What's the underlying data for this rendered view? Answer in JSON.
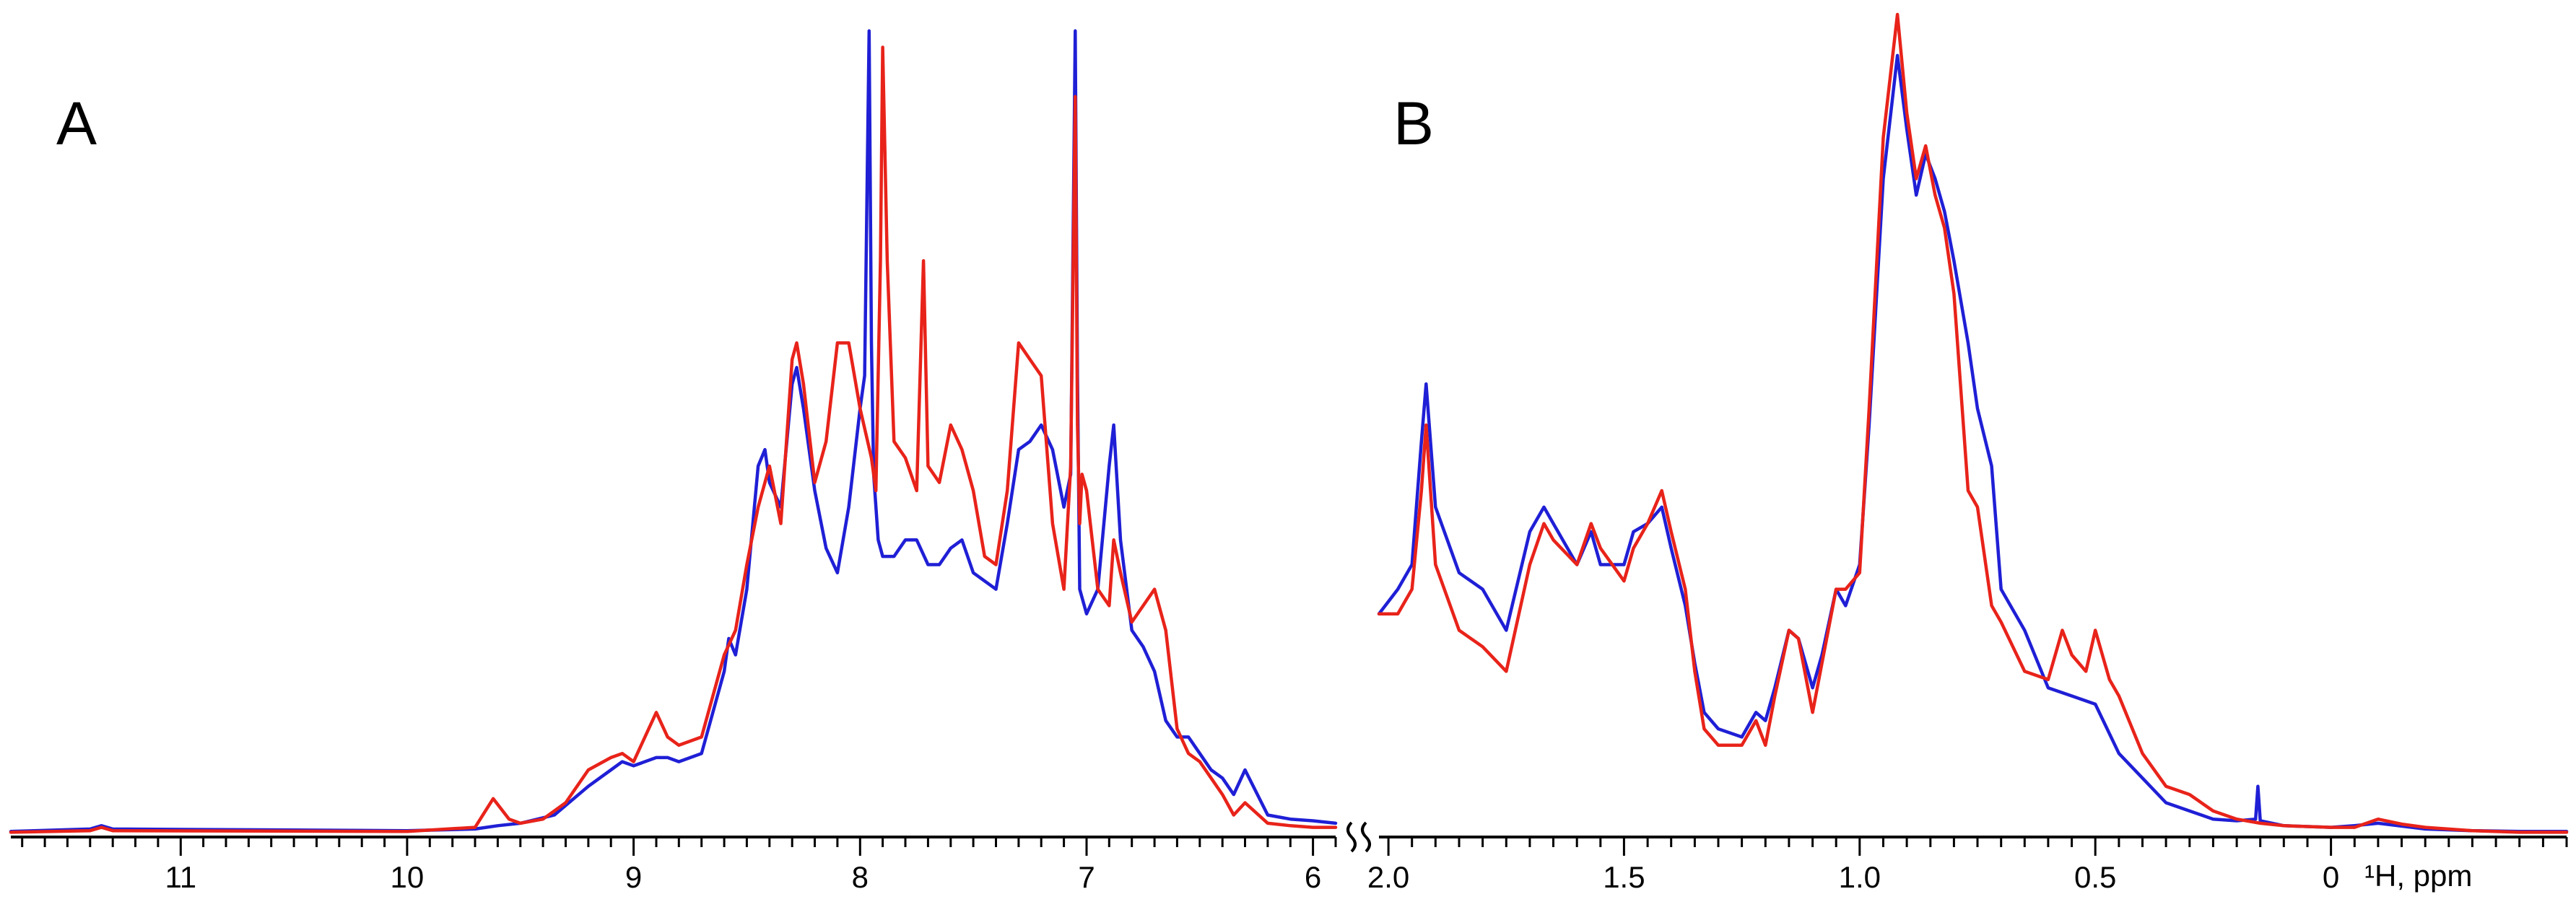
{
  "chart_data": [
    {
      "type": "line",
      "panel_label": "A",
      "x_axis": {
        "reversed": true,
        "xlim": [
          11.75,
          5.9
        ],
        "ticks": [
          11,
          10,
          9,
          8,
          7,
          6
        ],
        "tick_labels": [
          "11",
          "10",
          "9",
          "8",
          "7",
          "6"
        ],
        "minor_tick_step": 0.1
      },
      "ylim": [
        0,
        1
      ],
      "grid": false,
      "series": [
        {
          "color": "#1f1fd6",
          "x": [
            11.75,
            11.4,
            11.35,
            11.3,
            10.0,
            9.7,
            9.6,
            9.5,
            9.35,
            9.2,
            9.1,
            9.05,
            9.0,
            8.9,
            8.85,
            8.8,
            8.7,
            8.6,
            8.58,
            8.55,
            8.5,
            8.45,
            8.42,
            8.4,
            8.35,
            8.3,
            8.28,
            8.25,
            8.2,
            8.15,
            8.1,
            8.05,
            8.0,
            7.98,
            7.96,
            7.95,
            7.94,
            7.92,
            7.9,
            7.85,
            7.8,
            7.75,
            7.7,
            7.65,
            7.6,
            7.55,
            7.5,
            7.45,
            7.4,
            7.35,
            7.3,
            7.25,
            7.2,
            7.15,
            7.1,
            7.07,
            7.05,
            7.04,
            7.03,
            7.0,
            6.95,
            6.9,
            6.88,
            6.85,
            6.8,
            6.75,
            6.7,
            6.65,
            6.6,
            6.55,
            6.5,
            6.45,
            6.4,
            6.35,
            6.3,
            6.2,
            6.1,
            6.0,
            5.9
          ],
          "y": [
            0.005,
            0.008,
            0.012,
            0.008,
            0.006,
            0.008,
            0.012,
            0.015,
            0.025,
            0.06,
            0.08,
            0.09,
            0.085,
            0.095,
            0.095,
            0.09,
            0.1,
            0.2,
            0.24,
            0.22,
            0.3,
            0.45,
            0.47,
            0.43,
            0.4,
            0.55,
            0.57,
            0.52,
            0.42,
            0.35,
            0.32,
            0.4,
            0.52,
            0.56,
            0.98,
            0.6,
            0.44,
            0.36,
            0.34,
            0.34,
            0.36,
            0.36,
            0.33,
            0.33,
            0.35,
            0.36,
            0.32,
            0.31,
            0.3,
            0.38,
            0.47,
            0.48,
            0.5,
            0.47,
            0.4,
            0.44,
            0.98,
            0.56,
            0.3,
            0.27,
            0.3,
            0.45,
            0.5,
            0.36,
            0.25,
            0.23,
            0.2,
            0.14,
            0.12,
            0.12,
            0.1,
            0.08,
            0.07,
            0.05,
            0.08,
            0.025,
            0.02,
            0.018,
            0.015
          ]
        },
        {
          "color": "#e8231a",
          "x": [
            11.75,
            11.4,
            11.35,
            11.3,
            10.0,
            9.7,
            9.62,
            9.55,
            9.5,
            9.4,
            9.3,
            9.2,
            9.1,
            9.05,
            9.0,
            8.95,
            8.9,
            8.85,
            8.8,
            8.7,
            8.6,
            8.55,
            8.5,
            8.45,
            8.4,
            8.35,
            8.3,
            8.28,
            8.25,
            8.2,
            8.15,
            8.1,
            8.05,
            8.0,
            7.95,
            7.93,
            7.91,
            7.9,
            7.88,
            7.85,
            7.8,
            7.75,
            7.72,
            7.7,
            7.65,
            7.6,
            7.55,
            7.5,
            7.45,
            7.4,
            7.35,
            7.3,
            7.25,
            7.2,
            7.15,
            7.1,
            7.07,
            7.05,
            7.04,
            7.03,
            7.02,
            7.0,
            6.95,
            6.9,
            6.88,
            6.85,
            6.8,
            6.75,
            6.7,
            6.65,
            6.6,
            6.55,
            6.5,
            6.45,
            6.4,
            6.35,
            6.3,
            6.2,
            6.1,
            6.0,
            5.9
          ],
          "y": [
            0.004,
            0.006,
            0.01,
            0.006,
            0.005,
            0.01,
            0.045,
            0.02,
            0.015,
            0.02,
            0.04,
            0.08,
            0.095,
            0.1,
            0.09,
            0.12,
            0.15,
            0.12,
            0.11,
            0.12,
            0.22,
            0.25,
            0.33,
            0.4,
            0.45,
            0.38,
            0.58,
            0.6,
            0.55,
            0.43,
            0.48,
            0.6,
            0.6,
            0.52,
            0.46,
            0.42,
            0.7,
            0.96,
            0.7,
            0.48,
            0.46,
            0.42,
            0.7,
            0.45,
            0.43,
            0.5,
            0.47,
            0.42,
            0.34,
            0.33,
            0.42,
            0.6,
            0.58,
            0.56,
            0.38,
            0.3,
            0.45,
            0.9,
            0.5,
            0.38,
            0.44,
            0.42,
            0.3,
            0.28,
            0.36,
            0.32,
            0.26,
            0.28,
            0.3,
            0.25,
            0.13,
            0.1,
            0.09,
            0.07,
            0.05,
            0.025,
            0.04,
            0.015,
            0.012,
            0.01,
            0.01
          ]
        }
      ]
    },
    {
      "type": "line",
      "panel_label": "B",
      "x_axis": {
        "reversed": true,
        "xlim": [
          2.02,
          -0.5
        ],
        "ticks": [
          2.0,
          1.5,
          1.0,
          0.5,
          0
        ],
        "tick_labels": [
          "2.0",
          "1.5",
          "1.0",
          "0.5",
          "0"
        ],
        "unit_label": "¹H, ppm",
        "minor_tick_step": 0.05
      },
      "ylim": [
        0,
        1
      ],
      "grid": false,
      "series": [
        {
          "color": "#1f1fd6",
          "x": [
            2.02,
            1.98,
            1.95,
            1.93,
            1.92,
            1.9,
            1.85,
            1.8,
            1.75,
            1.7,
            1.67,
            1.65,
            1.6,
            1.57,
            1.55,
            1.5,
            1.48,
            1.45,
            1.42,
            1.4,
            1.37,
            1.35,
            1.33,
            1.3,
            1.25,
            1.22,
            1.2,
            1.18,
            1.15,
            1.13,
            1.1,
            1.08,
            1.05,
            1.03,
            1.0,
            0.98,
            0.95,
            0.92,
            0.9,
            0.88,
            0.86,
            0.84,
            0.82,
            0.8,
            0.77,
            0.75,
            0.72,
            0.7,
            0.65,
            0.6,
            0.55,
            0.5,
            0.45,
            0.4,
            0.35,
            0.3,
            0.25,
            0.2,
            0.16,
            0.155,
            0.15,
            0.1,
            0.0,
            -0.05,
            -0.1,
            -0.2,
            -0.3,
            -0.4,
            -0.5
          ],
          "y": [
            0.27,
            0.3,
            0.33,
            0.48,
            0.55,
            0.4,
            0.32,
            0.3,
            0.25,
            0.37,
            0.4,
            0.38,
            0.33,
            0.37,
            0.33,
            0.33,
            0.37,
            0.38,
            0.4,
            0.35,
            0.28,
            0.21,
            0.15,
            0.13,
            0.12,
            0.15,
            0.14,
            0.18,
            0.25,
            0.24,
            0.18,
            0.22,
            0.3,
            0.28,
            0.33,
            0.5,
            0.8,
            0.95,
            0.86,
            0.78,
            0.83,
            0.8,
            0.76,
            0.7,
            0.6,
            0.52,
            0.45,
            0.3,
            0.25,
            0.18,
            0.17,
            0.16,
            0.1,
            0.07,
            0.04,
            0.03,
            0.02,
            0.018,
            0.02,
            0.06,
            0.018,
            0.012,
            0.01,
            0.012,
            0.015,
            0.008,
            0.006,
            0.005,
            0.005
          ]
        },
        {
          "color": "#e8231a",
          "x": [
            2.02,
            1.98,
            1.95,
            1.93,
            1.92,
            1.9,
            1.85,
            1.8,
            1.75,
            1.7,
            1.67,
            1.65,
            1.6,
            1.57,
            1.55,
            1.5,
            1.48,
            1.45,
            1.42,
            1.4,
            1.37,
            1.35,
            1.33,
            1.3,
            1.25,
            1.22,
            1.2,
            1.18,
            1.15,
            1.13,
            1.1,
            1.08,
            1.05,
            1.03,
            1.0,
            0.98,
            0.95,
            0.92,
            0.9,
            0.88,
            0.86,
            0.84,
            0.82,
            0.8,
            0.77,
            0.75,
            0.72,
            0.7,
            0.65,
            0.6,
            0.57,
            0.55,
            0.52,
            0.5,
            0.47,
            0.45,
            0.4,
            0.35,
            0.3,
            0.25,
            0.2,
            0.15,
            0.1,
            0.0,
            -0.05,
            -0.1,
            -0.15,
            -0.2,
            -0.3,
            -0.4,
            -0.5
          ],
          "y": [
            0.27,
            0.27,
            0.3,
            0.42,
            0.5,
            0.33,
            0.25,
            0.23,
            0.2,
            0.33,
            0.38,
            0.36,
            0.33,
            0.38,
            0.35,
            0.31,
            0.35,
            0.38,
            0.42,
            0.37,
            0.3,
            0.2,
            0.13,
            0.11,
            0.11,
            0.14,
            0.11,
            0.17,
            0.25,
            0.24,
            0.15,
            0.21,
            0.3,
            0.3,
            0.32,
            0.52,
            0.85,
            1.0,
            0.88,
            0.8,
            0.84,
            0.78,
            0.74,
            0.66,
            0.42,
            0.4,
            0.28,
            0.26,
            0.2,
            0.19,
            0.25,
            0.22,
            0.2,
            0.25,
            0.19,
            0.17,
            0.1,
            0.06,
            0.05,
            0.03,
            0.02,
            0.015,
            0.012,
            0.01,
            0.01,
            0.02,
            0.014,
            0.01,
            0.006,
            0.004,
            0.004
          ]
        }
      ]
    }
  ]
}
